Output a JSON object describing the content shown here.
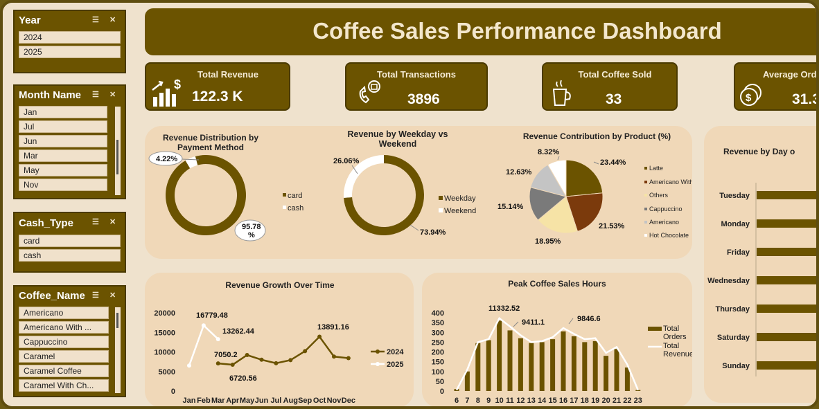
{
  "title": "Coffee Sales Performance Dashboard",
  "slicers": {
    "year": {
      "title": "Year",
      "items": [
        "2024",
        "2025"
      ]
    },
    "month": {
      "title": "Month Name",
      "items": [
        "Jan",
        "Jul",
        "Jun",
        "Mar",
        "May",
        "Nov"
      ]
    },
    "cash": {
      "title": "Cash_Type",
      "items": [
        "card",
        "cash"
      ]
    },
    "coffee": {
      "title": "Coffee_Name",
      "items": [
        "Americano",
        "Americano With ...",
        "Cappuccino",
        "Caramel",
        "Caramel Coffee",
        "Caramel With Ch..."
      ]
    }
  },
  "kpis": [
    {
      "label": "Total Revenue",
      "value": "122.3 K"
    },
    {
      "label": "Total Transactions",
      "value": "3896"
    },
    {
      "label": "Total Coffee Sold",
      "value": "33"
    },
    {
      "label": "Average Orde",
      "value": "31.3"
    }
  ],
  "colors": {
    "brown": "#6b5300",
    "dark": "#4a3a00",
    "panel": "#f0d8b8",
    "rust": "#7b3a0c",
    "gray": "#7a7a7a",
    "lightgray": "#c4c4c4",
    "cream": "#f6e3a6"
  },
  "chart_data": [
    {
      "type": "pie",
      "title": "Revenue Distribution by Payment Method",
      "categories": [
        "card",
        "cash"
      ],
      "values": [
        95.78,
        4.22
      ],
      "labels": [
        "95.78 %",
        "4.22%"
      ]
    },
    {
      "type": "pie",
      "title": "Revenue by Weekday vs Weekend",
      "categories": [
        "Weekday",
        "Weekend"
      ],
      "values": [
        73.94,
        26.06
      ],
      "labels": [
        "73.94%",
        "26.06%"
      ]
    },
    {
      "type": "pie",
      "title": "Revenue Contribution by Product (%)",
      "categories": [
        "Latte",
        "Americano With Milk",
        "Others",
        "Cappuccino",
        "Americano",
        "Hot Chocolate"
      ],
      "values": [
        23.44,
        21.53,
        18.95,
        15.14,
        12.63,
        8.32
      ],
      "labels": [
        "23.44%",
        "21.53%",
        "18.95%",
        "15.14%",
        "12.63%",
        "8.32%"
      ]
    },
    {
      "type": "line",
      "title": "Revenue Growth Over Time",
      "categories": [
        "Jan",
        "Feb",
        "Mar",
        "Apr",
        "May",
        "Jun",
        "Jul",
        "Aug",
        "Sep",
        "Oct",
        "Nov",
        "Dec"
      ],
      "ylim": [
        0,
        20000
      ],
      "yticks": [
        "20000",
        "15000",
        "10000",
        "5000",
        "0"
      ],
      "series": [
        {
          "name": "2024",
          "values": [
            null,
            null,
            7050.2,
            6720.56,
            9200,
            8000,
            7100,
            7900,
            10200,
            13891.16,
            8800,
            8400
          ]
        },
        {
          "name": "2025",
          "values": [
            6500,
            16779.48,
            13262.44,
            null,
            null,
            null,
            null,
            null,
            null,
            null,
            null,
            null
          ]
        }
      ],
      "data_labels": [
        "16779.48",
        "13262.44",
        "7050.2",
        "6720.56",
        "13891.16"
      ]
    },
    {
      "type": "bar",
      "title": "Peak Coffee Sales Hours",
      "categories": [
        "6",
        "7",
        "8",
        "9",
        "10",
        "11",
        "12",
        "13",
        "14",
        "15",
        "16",
        "17",
        "18",
        "19",
        "20",
        "21",
        "22",
        "23"
      ],
      "ylim": [
        0,
        400
      ],
      "yticks": [
        "400",
        "350",
        "300",
        "250",
        "200",
        "150",
        "100",
        "50",
        "0"
      ],
      "series": [
        {
          "name": "Total Orders",
          "values": [
            10,
            100,
            245,
            260,
            360,
            310,
            270,
            245,
            250,
            265,
            305,
            280,
            250,
            255,
            180,
            215,
            120,
            5
          ]
        },
        {
          "name": "Total Revenue",
          "values": [
            5,
            110,
            250,
            265,
            372,
            330,
            285,
            250,
            255,
            275,
            322,
            292,
            265,
            270,
            195,
            225,
            135,
            5
          ]
        }
      ],
      "data_labels": [
        "11332.52",
        "9411.1",
        "9846.6"
      ]
    },
    {
      "type": "bar",
      "title": "Revenue by Day o",
      "categories": [
        "Tuesday",
        "Monday",
        "Friday",
        "Wednesday",
        "Thursday",
        "Saturday",
        "Sunday"
      ]
    }
  ]
}
